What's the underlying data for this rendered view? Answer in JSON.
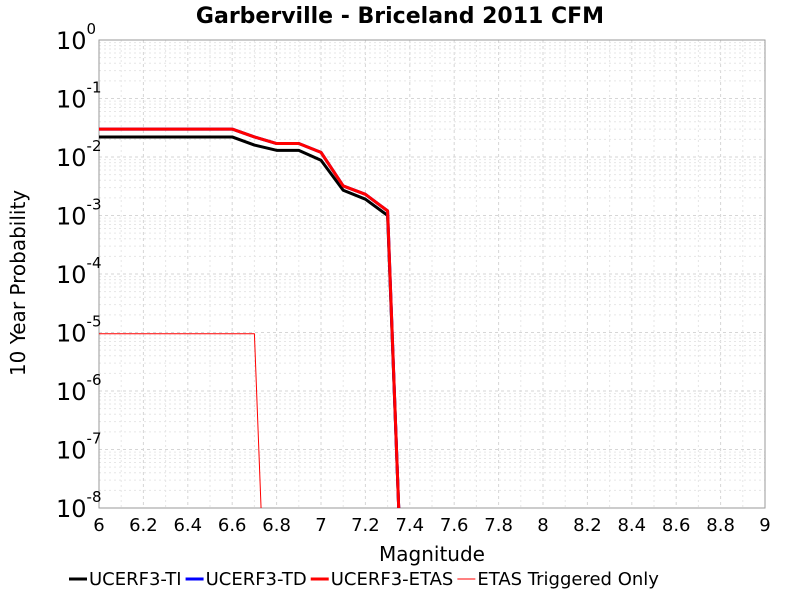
{
  "chart_data": {
    "type": "line",
    "title": "Garberville - Briceland 2011 CFM",
    "xlabel": "Magnitude",
    "ylabel": "10 Year Probability",
    "xlim": [
      6,
      9
    ],
    "ylim": [
      1e-08,
      1
    ],
    "yscale": "log",
    "grid": true,
    "legend_position": "bottom",
    "x_ticks": [
      "6",
      "6.2",
      "6.4",
      "6.6",
      "6.8",
      "7",
      "7.2",
      "7.4",
      "7.6",
      "7.8",
      "8",
      "8.2",
      "8.4",
      "8.6",
      "8.8",
      "9"
    ],
    "y_ticks": [
      {
        "base": "10",
        "exp": "0"
      },
      {
        "base": "10",
        "exp": "-1"
      },
      {
        "base": "10",
        "exp": "-2"
      },
      {
        "base": "10",
        "exp": "-3"
      },
      {
        "base": "10",
        "exp": "-4"
      },
      {
        "base": "10",
        "exp": "-5"
      },
      {
        "base": "10",
        "exp": "-6"
      },
      {
        "base": "10",
        "exp": "-7"
      },
      {
        "base": "10",
        "exp": "-8"
      }
    ],
    "series": [
      {
        "name": "UCERF3-TI",
        "color": "#000000",
        "width": 3,
        "points": [
          [
            6.0,
            0.022
          ],
          [
            6.6,
            0.022
          ],
          [
            6.7,
            0.016
          ],
          [
            6.8,
            0.013
          ],
          [
            6.9,
            0.013
          ],
          [
            7.0,
            0.0088
          ],
          [
            7.1,
            0.0027
          ],
          [
            7.2,
            0.0019
          ],
          [
            7.3,
            0.001
          ],
          [
            7.35,
            1e-08
          ]
        ]
      },
      {
        "name": "UCERF3-TD",
        "color": "#0000ff",
        "width": 3,
        "points": [
          [
            6.0,
            0.03
          ],
          [
            6.6,
            0.03
          ],
          [
            6.7,
            0.022
          ],
          [
            6.8,
            0.017
          ],
          [
            6.9,
            0.017
          ],
          [
            7.0,
            0.012
          ],
          [
            7.1,
            0.0032
          ],
          [
            7.2,
            0.0023
          ],
          [
            7.3,
            0.0012
          ],
          [
            7.35,
            1e-08
          ]
        ]
      },
      {
        "name": "UCERF3-ETAS",
        "color": "#ff0000",
        "width": 3,
        "points": [
          [
            6.0,
            0.03
          ],
          [
            6.6,
            0.03
          ],
          [
            6.7,
            0.022
          ],
          [
            6.8,
            0.017
          ],
          [
            6.9,
            0.017
          ],
          [
            7.0,
            0.012
          ],
          [
            7.1,
            0.0032
          ],
          [
            7.2,
            0.0023
          ],
          [
            7.3,
            0.0012
          ],
          [
            7.35,
            1e-08
          ]
        ]
      },
      {
        "name": "ETAS Triggered Only",
        "color": "#ff0000",
        "width": 1,
        "points": [
          [
            6.0,
            9.5e-06
          ],
          [
            6.6,
            9.5e-06
          ],
          [
            6.7,
            9.5e-06
          ],
          [
            6.73,
            1e-08
          ]
        ]
      }
    ]
  }
}
